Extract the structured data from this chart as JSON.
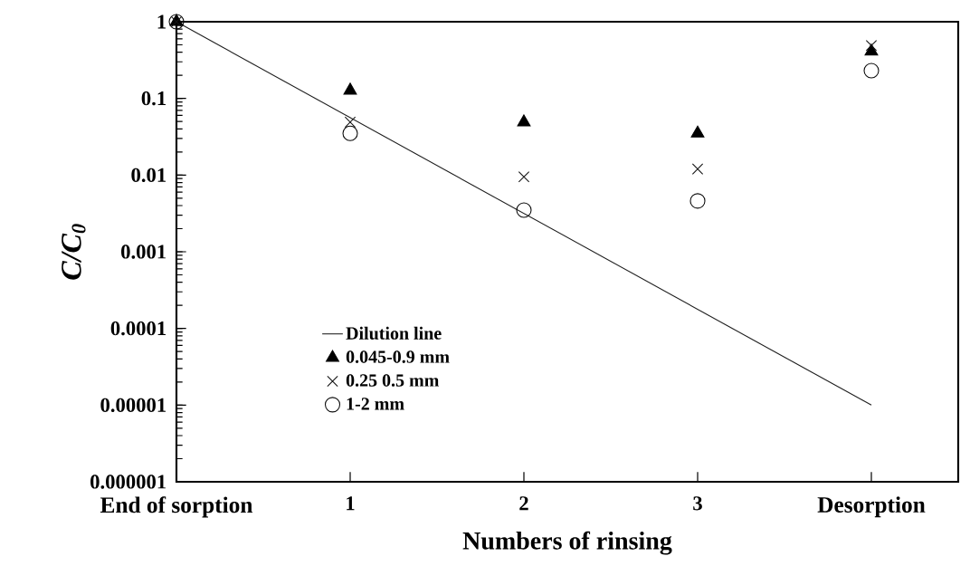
{
  "chart_data": {
    "type": "scatter",
    "xlabel": "Numbers of rinsing",
    "ylabel": "C/C$_{0}$",
    "x": [
      0,
      1,
      2,
      3,
      4
    ],
    "series": [
      {
        "name": "Dilution line",
        "type": "line",
        "color": "#1e1e1e",
        "marker": "none",
        "x": [
          0,
          4
        ],
        "values": [
          1,
          1e-05
        ]
      },
      {
        "name": "0.045-0.9 mm",
        "color": "#000000",
        "marker": "triangle",
        "values": [
          1,
          0.127,
          0.049,
          0.035,
          0.41
        ]
      },
      {
        "name": "0.25 0.5 mm",
        "color": "#141414",
        "marker": "cross",
        "values": [
          1,
          0.049,
          0.0095,
          0.012,
          0.49
        ]
      },
      {
        "name": "1-2 mm",
        "color": "#0a0a0a",
        "marker": "circle",
        "values": [
          1,
          0.035,
          0.0035,
          0.0046,
          0.23
        ]
      }
    ],
    "log": "y",
    "xlim": [
      0,
      4.5
    ],
    "ylim": [
      1e-06,
      1
    ],
    "xticks": [
      {
        "value": 0,
        "label": "End of sorption"
      },
      {
        "value": 1,
        "label": "1"
      },
      {
        "value": 2,
        "label": "2"
      },
      {
        "value": 3,
        "label": "3"
      },
      {
        "value": 4,
        "label": "Desorption"
      }
    ],
    "yticks": [
      {
        "value": 1e-06,
        "label": "0.000001"
      },
      {
        "value": 1e-05,
        "label": "0.00001"
      },
      {
        "value": 0.0001,
        "label": "0.0001"
      },
      {
        "value": 0.001,
        "label": "0.001"
      },
      {
        "value": 0.01,
        "label": "0.01"
      },
      {
        "value": 0.1,
        "label": "0.1"
      },
      {
        "value": 1,
        "label": "1"
      }
    ],
    "legend": "bottom left",
    "grid": false
  }
}
